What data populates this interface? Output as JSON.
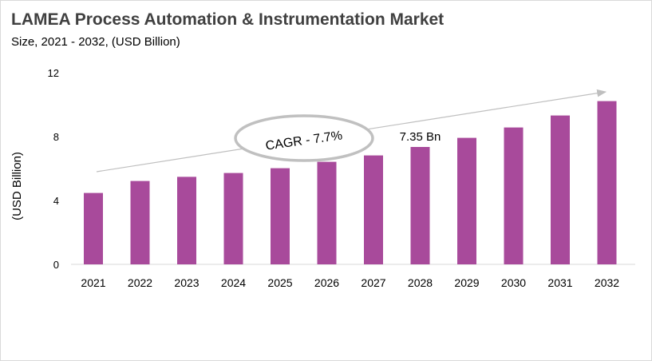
{
  "chart_data": {
    "type": "bar",
    "title": "LAMEA Process Automation & Instrumentation Market",
    "subtitle": "Size, 2021 - 2032, (USD Billion)",
    "xlabel": "",
    "ylabel": "(USD Billion)",
    "categories": [
      "2021",
      "2022",
      "2023",
      "2024",
      "2025",
      "2026",
      "2027",
      "2028",
      "2029",
      "2030",
      "2031",
      "2032"
    ],
    "values": [
      4.47,
      5.22,
      5.48,
      5.72,
      6.02,
      6.42,
      6.82,
      7.35,
      7.92,
      8.57,
      9.32,
      10.22
    ],
    "ylim": [
      0,
      12
    ],
    "yticks": [
      0,
      4,
      8,
      12
    ],
    "grid": false,
    "bar_color": "#a84a9b",
    "annotations": {
      "data_label": "7.35 Bn",
      "data_label_category": "2028",
      "cagr": "CAGR - 7.7%"
    }
  }
}
